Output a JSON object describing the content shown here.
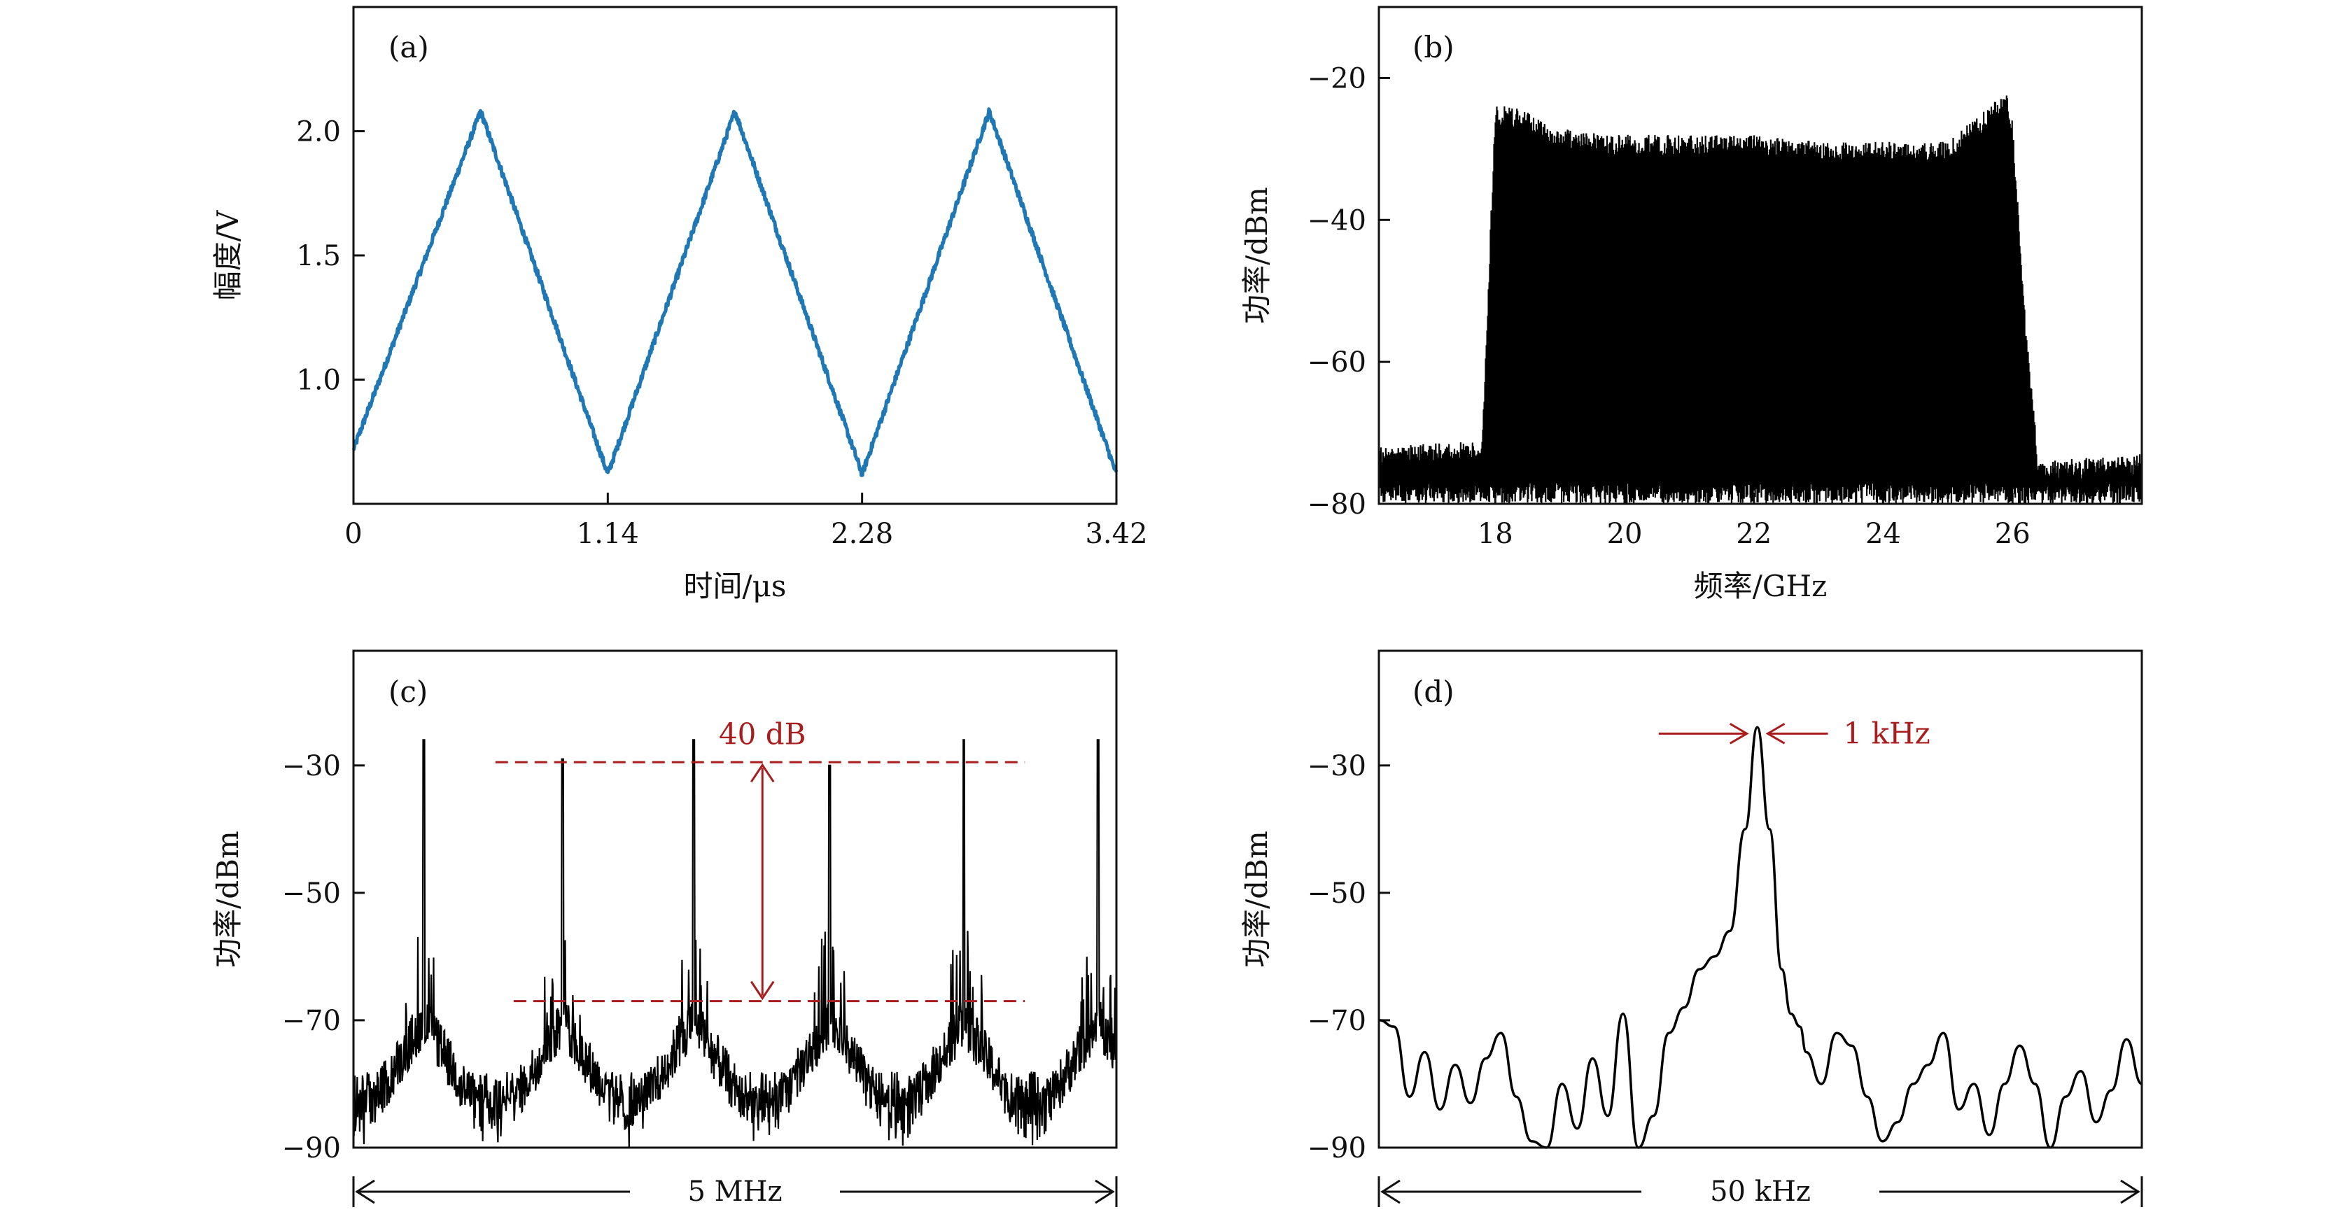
{
  "figure": {
    "panel_labels": [
      "(a)",
      "(b)",
      "(c)",
      "(d)"
    ]
  },
  "colors": {
    "trace_a": "#1f77b4",
    "trace_bcd": "#000000",
    "annotation": "#a81e1e"
  },
  "chart_data": [
    {
      "id": "a",
      "type": "line",
      "xlabel": "时间/μs",
      "ylabel": "幅度/V",
      "xlim": [
        0,
        3.42
      ],
      "ylim": [
        0.5,
        2.5
      ],
      "xticks": [
        0,
        1.14,
        2.28,
        3.42
      ],
      "xtick_labels": [
        "0",
        "1.14",
        "2.28",
        "3.42"
      ],
      "yticks": [
        1.0,
        1.5,
        2.0
      ],
      "ytick_labels": [
        "1.0",
        "1.5",
        "2.0"
      ],
      "series": [
        {
          "x": [
            0,
            0.57,
            1.14,
            1.71,
            2.28,
            2.85,
            3.42
          ],
          "y": [
            0.72,
            2.08,
            0.62,
            2.08,
            0.62,
            2.08,
            0.62
          ]
        }
      ]
    },
    {
      "id": "b",
      "type": "area",
      "xlabel": "频率/GHz",
      "ylabel": "功率/dBm",
      "xlim": [
        16.2,
        28.0
      ],
      "ylim": [
        -80,
        -10
      ],
      "xticks": [
        18,
        20,
        22,
        24,
        26
      ],
      "xtick_labels": [
        "18",
        "20",
        "22",
        "24",
        "26"
      ],
      "yticks": [
        -80,
        -60,
        -40,
        -20
      ],
      "ytick_labels": [
        "−80",
        "−60",
        "−40",
        "−20"
      ],
      "series": [
        {
          "x": [
            16.2,
            17.8,
            18.0,
            18.3,
            19.0,
            20.0,
            21.0,
            22.0,
            23.0,
            24.0,
            25.0,
            25.9,
            26.0,
            26.2,
            26.4,
            28.0
          ],
          "y": [
            -72,
            -71,
            -24,
            -24,
            -27,
            -28,
            -28,
            -28,
            -29,
            -29,
            -29,
            -22,
            -26,
            -54,
            -74,
            -73
          ]
        }
      ]
    },
    {
      "id": "c",
      "type": "line",
      "xlabel": "",
      "ylabel": "功率/dBm",
      "xlim": [
        0,
        5
      ],
      "ylim": [
        -90,
        -12
      ],
      "yticks": [
        -90,
        -70,
        -50,
        -30
      ],
      "ytick_labels": [
        "−90",
        "−70",
        "−50",
        "−30"
      ],
      "span_label": "5 MHz",
      "annotation": {
        "text": "40 dB",
        "upper": -29.5,
        "lower": -67
      },
      "series": [
        {
          "peaks_x": [
            0.46,
            1.37,
            2.23,
            3.12,
            4.0,
            4.88
          ],
          "peaks_y": [
            -26,
            -29,
            -26,
            -30,
            -26,
            -26
          ],
          "floor_y": -84
        }
      ]
    },
    {
      "id": "d",
      "type": "line",
      "xlabel": "",
      "ylabel": "功率/dBm",
      "xlim": [
        0,
        50
      ],
      "ylim": [
        -90,
        -12
      ],
      "yticks": [
        -90,
        -70,
        -50,
        -30
      ],
      "ytick_labels": [
        "−90",
        "−70",
        "−50",
        "−30"
      ],
      "span_label": "50 kHz",
      "annotation": {
        "text": "1 kHz"
      },
      "series": [
        {
          "x": [
            0,
            1,
            2,
            3,
            4,
            5,
            6,
            7,
            8,
            9,
            10,
            11,
            12,
            13,
            14,
            15,
            16,
            17,
            18,
            19,
            20,
            21,
            22,
            23,
            24,
            24.8,
            25.6,
            26.4,
            27,
            27.6,
            28,
            29,
            30,
            31,
            32,
            33,
            34,
            35,
            36,
            37,
            38,
            39,
            40,
            41,
            42,
            43,
            44,
            45,
            46,
            47,
            48,
            49,
            50
          ],
          "y": [
            -70,
            -71,
            -82,
            -75,
            -84,
            -77,
            -83,
            -76,
            -72,
            -82,
            -89,
            -94,
            -80,
            -87,
            -76,
            -85,
            -69,
            -93,
            -85,
            -72,
            -68,
            -62,
            -60,
            -56,
            -40,
            -24,
            -40,
            -62,
            -69,
            -71,
            -75,
            -80,
            -72,
            -74,
            -82,
            -89,
            -86,
            -80,
            -77,
            -72,
            -84,
            -80,
            -88,
            -80,
            -74,
            -80,
            -90,
            -82,
            -78,
            -86,
            -81,
            -73,
            -80
          ]
        }
      ]
    }
  ]
}
